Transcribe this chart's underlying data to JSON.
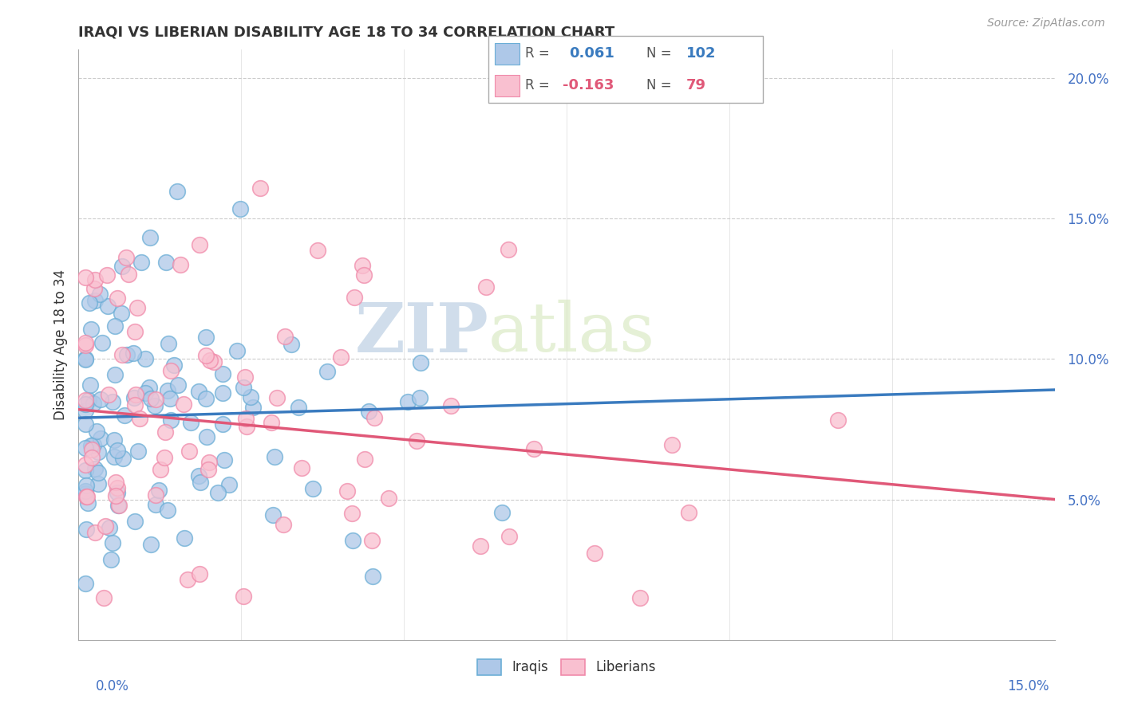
{
  "title": "IRAQI VS LIBERIAN DISABILITY AGE 18 TO 34 CORRELATION CHART",
  "source": "Source: ZipAtlas.com",
  "ylabel": "Disability Age 18 to 34",
  "xlim": [
    0.0,
    0.15
  ],
  "ylim": [
    0.0,
    0.21
  ],
  "yticks": [
    0.05,
    0.1,
    0.15,
    0.2
  ],
  "ytick_labels": [
    "5.0%",
    "10.0%",
    "15.0%",
    "20.0%"
  ],
  "iraqi_R": 0.061,
  "iraqi_N": 102,
  "liberian_R": -0.163,
  "liberian_N": 79,
  "iraqi_color": "#aec8e8",
  "iraqi_edge_color": "#6baed6",
  "iraqi_line_color": "#3a7bbf",
  "liberian_color": "#f9c0d0",
  "liberian_edge_color": "#f08aaa",
  "liberian_line_color": "#e05878",
  "watermark_zip": "ZIP",
  "watermark_atlas": "atlas",
  "legend_label_iraqi": "Iraqis",
  "legend_label_liberian": "Liberians",
  "iraqi_line_y0": 0.079,
  "iraqi_line_y1": 0.089,
  "liberian_line_y0": 0.082,
  "liberian_line_y1": 0.05,
  "seed": 1234
}
